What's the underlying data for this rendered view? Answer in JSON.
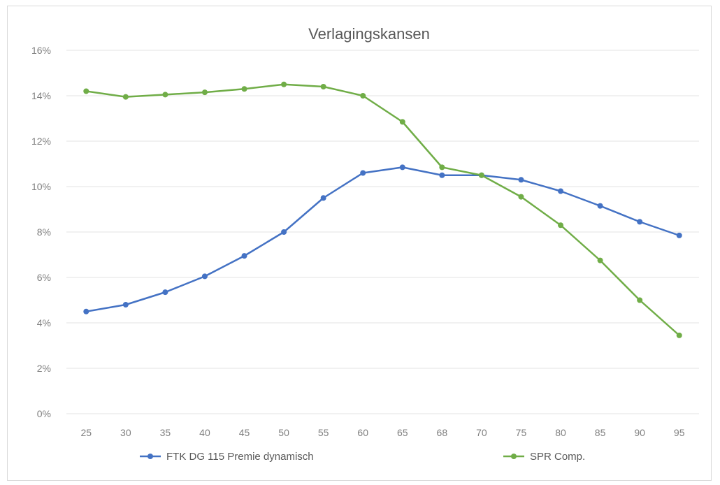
{
  "chart_data": {
    "type": "line",
    "title": "Verlagingskansen",
    "xlabel": "",
    "ylabel": "",
    "categories": [
      "25",
      "30",
      "35",
      "40",
      "45",
      "50",
      "55",
      "60",
      "65",
      "68",
      "70",
      "75",
      "80",
      "85",
      "90",
      "95"
    ],
    "y_ticks": [
      "0%",
      "2%",
      "4%",
      "6%",
      "8%",
      "10%",
      "12%",
      "14%",
      "16%"
    ],
    "ylim": [
      0,
      16
    ],
    "grid": true,
    "legend_position": "bottom",
    "series": [
      {
        "name": "FTK DG 115 Premie dynamisch",
        "color": "#4472c4",
        "values": [
          4.5,
          4.8,
          5.35,
          6.05,
          6.95,
          8.0,
          9.5,
          10.6,
          10.85,
          10.5,
          10.5,
          10.3,
          9.8,
          9.15,
          8.45,
          7.85
        ]
      },
      {
        "name": "SPR Comp.",
        "color": "#70ad47",
        "values": [
          14.2,
          13.95,
          14.05,
          14.15,
          14.3,
          14.5,
          14.4,
          14.0,
          12.85,
          10.85,
          10.5,
          9.55,
          8.3,
          6.75,
          5.0,
          3.45
        ]
      }
    ]
  }
}
